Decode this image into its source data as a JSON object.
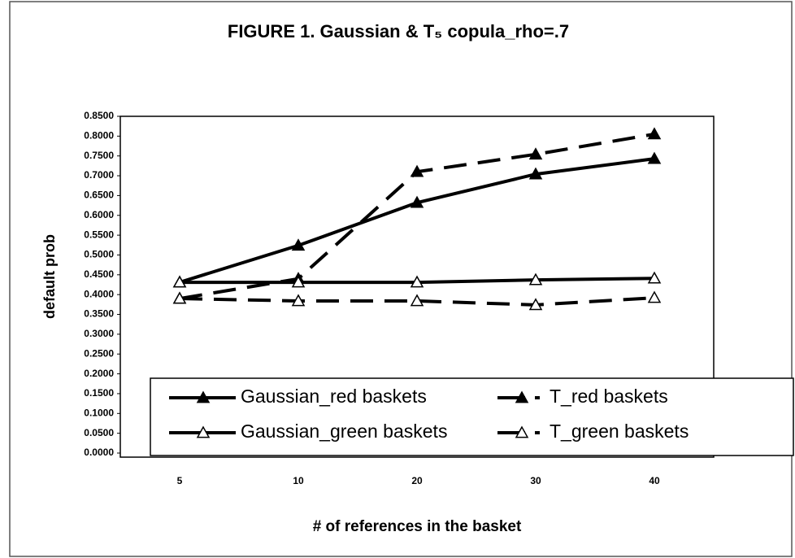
{
  "chart_data": {
    "type": "line",
    "title": "FIGURE 1. Gaussian & T₅ copula_rho=.7",
    "x_label": "# of references in the basket",
    "y_label": "default prob",
    "categories": [
      "5",
      "10",
      "20",
      "30",
      "40"
    ],
    "series": [
      {
        "name": "Gaussian_red baskets",
        "color": "#000000",
        "dash": false,
        "marker": "filled",
        "values": [
          0.431,
          0.524,
          0.632,
          0.704,
          0.743
        ]
      },
      {
        "name": "T_red baskets",
        "color": "#000000",
        "dash": true,
        "marker": "filled",
        "values": [
          0.39,
          0.44,
          0.71,
          0.754,
          0.805
        ]
      },
      {
        "name": "Gaussian_green baskets",
        "color": "#000000",
        "dash": false,
        "marker": "hollow",
        "values": [
          0.431,
          0.431,
          0.431,
          0.437,
          0.441
        ]
      },
      {
        "name": "T_green baskets",
        "color": "#000000",
        "dash": true,
        "marker": "hollow",
        "values": [
          0.39,
          0.384,
          0.384,
          0.374,
          0.392
        ]
      }
    ],
    "ylim": [
      0,
      0.85
    ],
    "yticks": [
      {
        "value": 0,
        "label": "0.0000"
      },
      {
        "value": 0.05,
        "label": "0.0500"
      },
      {
        "value": 0.1,
        "label": "0.1000"
      },
      {
        "value": 0.15,
        "label": "0.1500"
      },
      {
        "value": 0.2,
        "label": "0.2000"
      },
      {
        "value": 0.25,
        "label": "0.2500"
      },
      {
        "value": 0.3,
        "label": "0.3000"
      },
      {
        "value": 0.35,
        "label": "0.3500"
      },
      {
        "value": 0.4,
        "label": "0.4000"
      },
      {
        "value": 0.45,
        "label": "0.4500"
      },
      {
        "value": 0.5,
        "label": "0.5000"
      },
      {
        "value": 0.55,
        "label": "0.5500"
      },
      {
        "value": 0.6,
        "label": "0.6000"
      },
      {
        "value": 0.65,
        "label": "0.6500"
      },
      {
        "value": 0.7,
        "label": "0.7000"
      },
      {
        "value": 0.75,
        "label": "0.7500"
      },
      {
        "value": 0.8,
        "label": "0.8000"
      },
      {
        "value": 0.85,
        "label": "0.8500"
      }
    ],
    "grid": false,
    "legend": "bottom"
  }
}
